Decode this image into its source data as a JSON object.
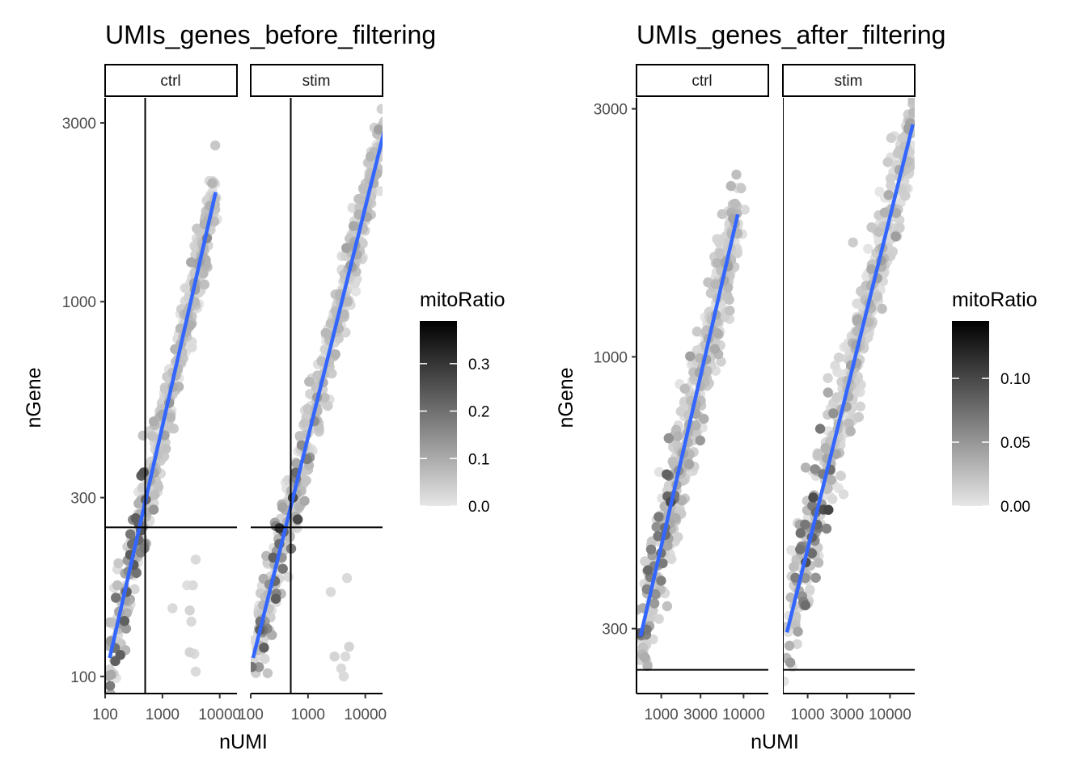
{
  "chart_data": [
    {
      "type": "scatter",
      "title": "UMIs_genes_before_filtering",
      "xlabel": "nUMI",
      "ylabel": "nGene",
      "x_scale": "log10",
      "y_scale": "log10",
      "xlim": [
        100,
        20000
      ],
      "ylim": [
        90,
        3500
      ],
      "x_ticks": [
        100,
        1000,
        10000
      ],
      "x_tick_labels": [
        "100",
        "1000",
        "10000"
      ],
      "y_ticks": [
        100,
        300,
        1000,
        3000
      ],
      "y_tick_labels": [
        "100",
        "300",
        "1000",
        "3000"
      ],
      "vline_x": 500,
      "hline_y": 250,
      "color_by": "mitoRatio",
      "legend": {
        "title": "mitoRatio",
        "placement": "right",
        "min": 0.0,
        "max": 0.39,
        "ticks": [
          0.0,
          0.1,
          0.2,
          0.3
        ],
        "tick_labels": [
          "0.0",
          "0.1",
          "0.2",
          "0.3"
        ],
        "low_color": "#e6e6e6",
        "high_color": "#000000"
      },
      "trend_color": "#3366ff",
      "facets": [
        {
          "label": "ctrl",
          "trend": {
            "x": [
              120,
              8500
            ],
            "y": [
              112,
              1960
            ]
          },
          "outliers": [
            {
              "x": 1500,
              "y": 152,
              "m": 0.02
            },
            {
              "x": 2700,
              "y": 175,
              "m": 0.01
            },
            {
              "x": 3400,
              "y": 175,
              "m": 0.02
            },
            {
              "x": 3800,
              "y": 205,
              "m": 0.02
            },
            {
              "x": 3000,
              "y": 150,
              "m": 0.03
            },
            {
              "x": 3200,
              "y": 140,
              "m": 0.02
            },
            {
              "x": 3600,
              "y": 115,
              "m": 0.02
            },
            {
              "x": 3000,
              "y": 116,
              "m": 0.03
            },
            {
              "x": 3800,
              "y": 103,
              "m": 0.02
            }
          ]
        },
        {
          "label": "stim",
          "trend": {
            "x": [
              110,
              22000
            ],
            "y": [
              112,
              2900
            ]
          },
          "outliers": [
            {
              "x": 2500,
              "y": 168,
              "m": 0.02
            },
            {
              "x": 4800,
              "y": 183,
              "m": 0.02
            },
            {
              "x": 5200,
              "y": 120,
              "m": 0.03
            },
            {
              "x": 4500,
              "y": 113,
              "m": 0.02
            },
            {
              "x": 2900,
              "y": 113,
              "m": 0.03
            },
            {
              "x": 3800,
              "y": 105,
              "m": 0.02
            },
            {
              "x": 4200,
              "y": 100,
              "m": 0.02
            }
          ]
        }
      ]
    },
    {
      "type": "scatter",
      "title": "UMIs_genes_after_filtering",
      "xlabel": "nUMI",
      "ylabel": "nGene",
      "x_scale": "log10",
      "y_scale": "log10",
      "xlim": [
        500,
        20000
      ],
      "ylim": [
        225,
        3150
      ],
      "x_ticks": [
        1000,
        3000,
        10000
      ],
      "x_tick_labels": [
        "1000",
        "3000",
        "10000"
      ],
      "y_ticks": [
        300,
        1000,
        3000
      ],
      "y_tick_labels": [
        "300",
        "1000",
        "3000"
      ],
      "vline_x": 500,
      "hline_y": 250,
      "color_by": "mitoRatio",
      "legend": {
        "title": "mitoRatio",
        "placement": "right",
        "min": 0.0,
        "max": 0.145,
        "ticks": [
          0.0,
          0.05,
          0.1
        ],
        "tick_labels": [
          "0.00",
          "0.05",
          "0.10"
        ],
        "low_color": "#e6e6e6",
        "high_color": "#000000"
      },
      "trend_color": "#3366ff",
      "facets": [
        {
          "label": "ctrl",
          "trend": {
            "x": [
              560,
              8500
            ],
            "y": [
              290,
              1880
            ]
          },
          "outliers": []
        },
        {
          "label": "stim",
          "trend": {
            "x": [
              560,
              19000
            ],
            "y": [
              295,
              2800
            ]
          },
          "outliers": []
        }
      ]
    }
  ]
}
